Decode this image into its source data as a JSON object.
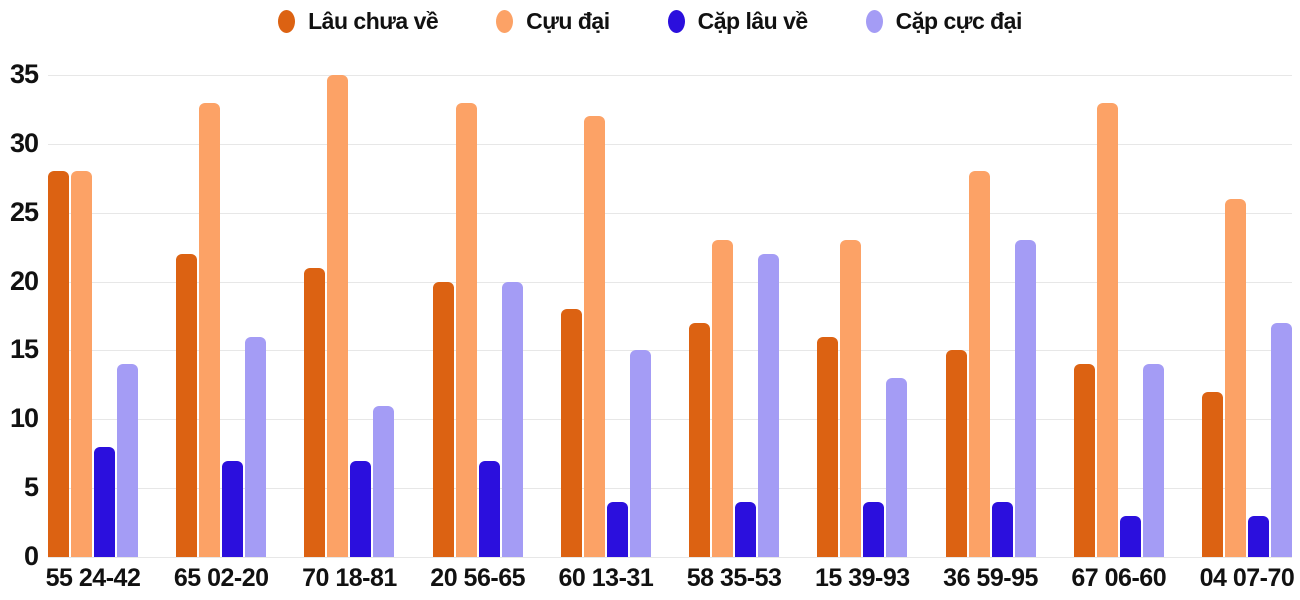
{
  "chart_data": {
    "type": "bar",
    "title": "",
    "xlabel": "",
    "ylabel": "",
    "categories": [
      "55 24-42",
      "65 02-20",
      "70 18-81",
      "20 56-65",
      "60 13-31",
      "58 35-53",
      "15 39-93",
      "36 59-95",
      "67 06-60",
      "04 07-70"
    ],
    "series": [
      {
        "name": "Lâu chưa về",
        "color": "#dc6212",
        "values": [
          28,
          22,
          21,
          20,
          18,
          17,
          16,
          15,
          14,
          12
        ]
      },
      {
        "name": "Cựu đại",
        "color": "#fca266",
        "values": [
          28,
          33,
          35,
          33,
          32,
          23,
          23,
          28,
          33,
          26
        ]
      },
      {
        "name": "Cặp lâu về",
        "color": "#2b0fdd",
        "values": [
          8,
          7,
          7,
          7,
          4,
          4,
          4,
          4,
          3,
          3
        ]
      },
      {
        "name": "Cặp cực đại",
        "color": "#a49cf5",
        "values": [
          14,
          16,
          11,
          20,
          15,
          22,
          13,
          23,
          14,
          17
        ]
      }
    ],
    "ylim": [
      0,
      35
    ],
    "yticks": [
      0,
      5,
      10,
      15,
      20,
      25,
      30,
      35
    ],
    "grid": true,
    "legend_position": "top"
  },
  "style": {
    "grid_color": "#e7e7e7",
    "text_color": "#111111",
    "background": "#ffffff"
  }
}
